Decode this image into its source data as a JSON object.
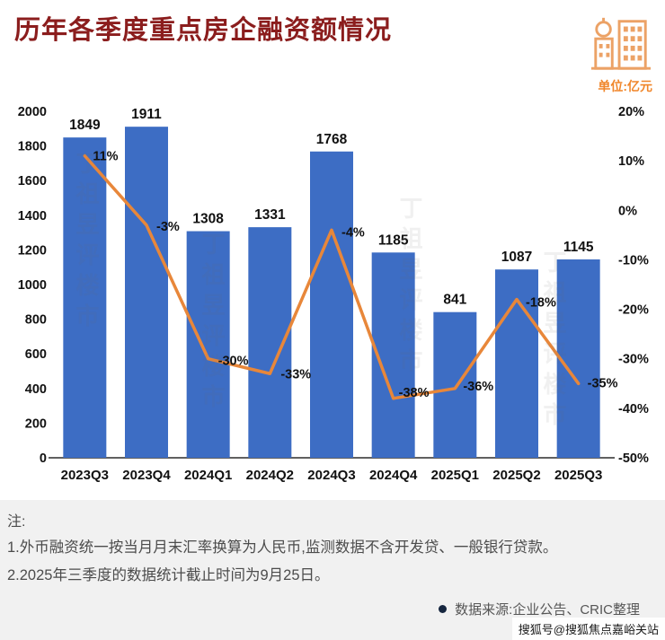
{
  "header": {
    "title": "历年各季度重点房企融资额情况"
  },
  "unit_label": "单位:亿元",
  "chart_data": {
    "type": "bar",
    "categories": [
      "2023Q3",
      "2023Q4",
      "2024Q1",
      "2024Q2",
      "2024Q3",
      "2024Q4",
      "2025Q1",
      "2025Q2",
      "2025Q3"
    ],
    "bar_values": [
      1849,
      1911,
      1308,
      1331,
      1768,
      1185,
      841,
      1087,
      1145
    ],
    "line_values": [
      11,
      -3,
      -30,
      -33,
      -4,
      -38,
      -36,
      -18,
      -35
    ],
    "line_labels": [
      "11%",
      "-3%",
      "-30%",
      "-33%",
      "-4%",
      "-38%",
      "-36%",
      "-18%",
      "-35%"
    ],
    "left_axis": {
      "min": 0,
      "max": 2000,
      "step": 200
    },
    "right_axis": {
      "min": -50,
      "max": 20,
      "step": 10,
      "suffix": "%"
    },
    "grid": false,
    "legend": "none",
    "colors": {
      "bar": "#3d6dc4",
      "line": "#e8873a",
      "axis_text": "#111111"
    }
  },
  "notes": {
    "label": "注:",
    "lines": [
      "1.外币融资统一按当月月末汇率换算为人民币,监测数据不含开发贷、一般银行贷款。",
      "2.2025年三季度的数据统计截止时间为9月25日。"
    ]
  },
  "source": {
    "text": "数据来源:企业公告、CRIC整理"
  },
  "watermark": {
    "badge": "搜狐号@搜狐焦点嘉峪关站",
    "chart": "丁祖昱评楼市"
  }
}
